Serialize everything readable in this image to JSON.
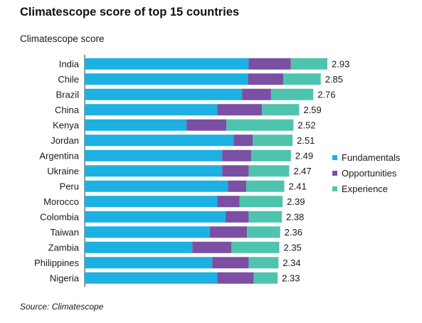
{
  "title": "Climatescope score of top 15 countries",
  "source": "Source: Climatescope",
  "chart_data": {
    "type": "bar",
    "orientation": "horizontal",
    "stacked": true,
    "ylabel": "Climatescope score",
    "categories": [
      "India",
      "Chile",
      "Brazil",
      "China",
      "Kenya",
      "Jordan",
      "Argentina",
      "Ukraine",
      "Peru",
      "Morocco",
      "Colombia",
      "Taiwan",
      "Zambia",
      "Philippines",
      "Nigeria"
    ],
    "totals": [
      "2.93",
      "2.85",
      "2.76",
      "2.59",
      "2.52",
      "2.51",
      "2.49",
      "2.47",
      "2.41",
      "2.39",
      "2.38",
      "2.36",
      "2.35",
      "2.34",
      "2.33"
    ],
    "series": [
      {
        "name": "Fundamentals",
        "color": "#1cb1e2",
        "values": [
          1.98,
          1.97,
          1.9,
          1.6,
          1.23,
          1.8,
          1.66,
          1.66,
          1.73,
          1.6,
          1.7,
          1.51,
          1.3,
          1.54,
          1.6
        ]
      },
      {
        "name": "Opportunities",
        "color": "#7b4fa3",
        "values": [
          0.51,
          0.43,
          0.35,
          0.54,
          0.48,
          0.23,
          0.35,
          0.32,
          0.22,
          0.27,
          0.28,
          0.45,
          0.47,
          0.44,
          0.44
        ]
      },
      {
        "name": "Experience",
        "color": "#4ec4ae",
        "values": [
          0.44,
          0.45,
          0.51,
          0.45,
          0.81,
          0.48,
          0.48,
          0.49,
          0.46,
          0.52,
          0.4,
          0.4,
          0.58,
          0.36,
          0.29
        ]
      }
    ],
    "xlim": [
      0,
      2.93
    ],
    "grid": false,
    "legend_position": "right"
  }
}
